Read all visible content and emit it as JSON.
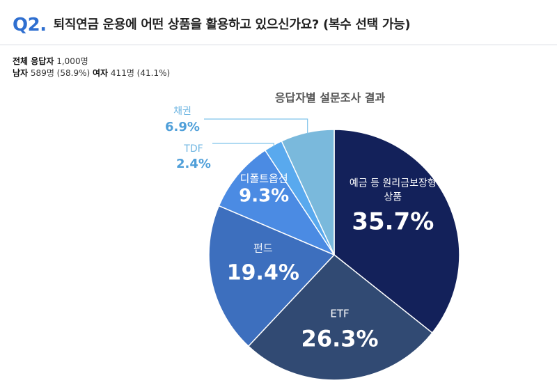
{
  "header": {
    "badge": "Q2.",
    "title": "퇴직연금 운용에 어떤 상품을 활용하고 있으신가요? (복수 선택 가능)"
  },
  "respondents": {
    "total_label": "전체 응답자",
    "total_value": "1,000명",
    "male_label": "남자",
    "male_value": "589명 (58.9%)",
    "female_label": "여자",
    "female_value": "411명 (41.1%)"
  },
  "chart_data": {
    "type": "pie",
    "title": "응답자별 설문조사 결과",
    "slices": [
      {
        "label": "예금 등 원리금보장형 상품",
        "value": 35.7,
        "display": "35.7%",
        "color": "#13215a"
      },
      {
        "label": "ETF",
        "value": 26.3,
        "display": "26.3%",
        "color": "#314a73"
      },
      {
        "label": "펀드",
        "value": 19.4,
        "display": "19.4%",
        "color": "#3d6fbe"
      },
      {
        "label": "디폴트옵션",
        "value": 9.3,
        "display": "9.3%",
        "color": "#4b8be3"
      },
      {
        "label": "TDF",
        "value": 2.4,
        "display": "2.4%",
        "color": "#59a9ee"
      },
      {
        "label": "채권",
        "value": 6.9,
        "display": "6.9%",
        "color": "#7ab9dc"
      }
    ]
  }
}
